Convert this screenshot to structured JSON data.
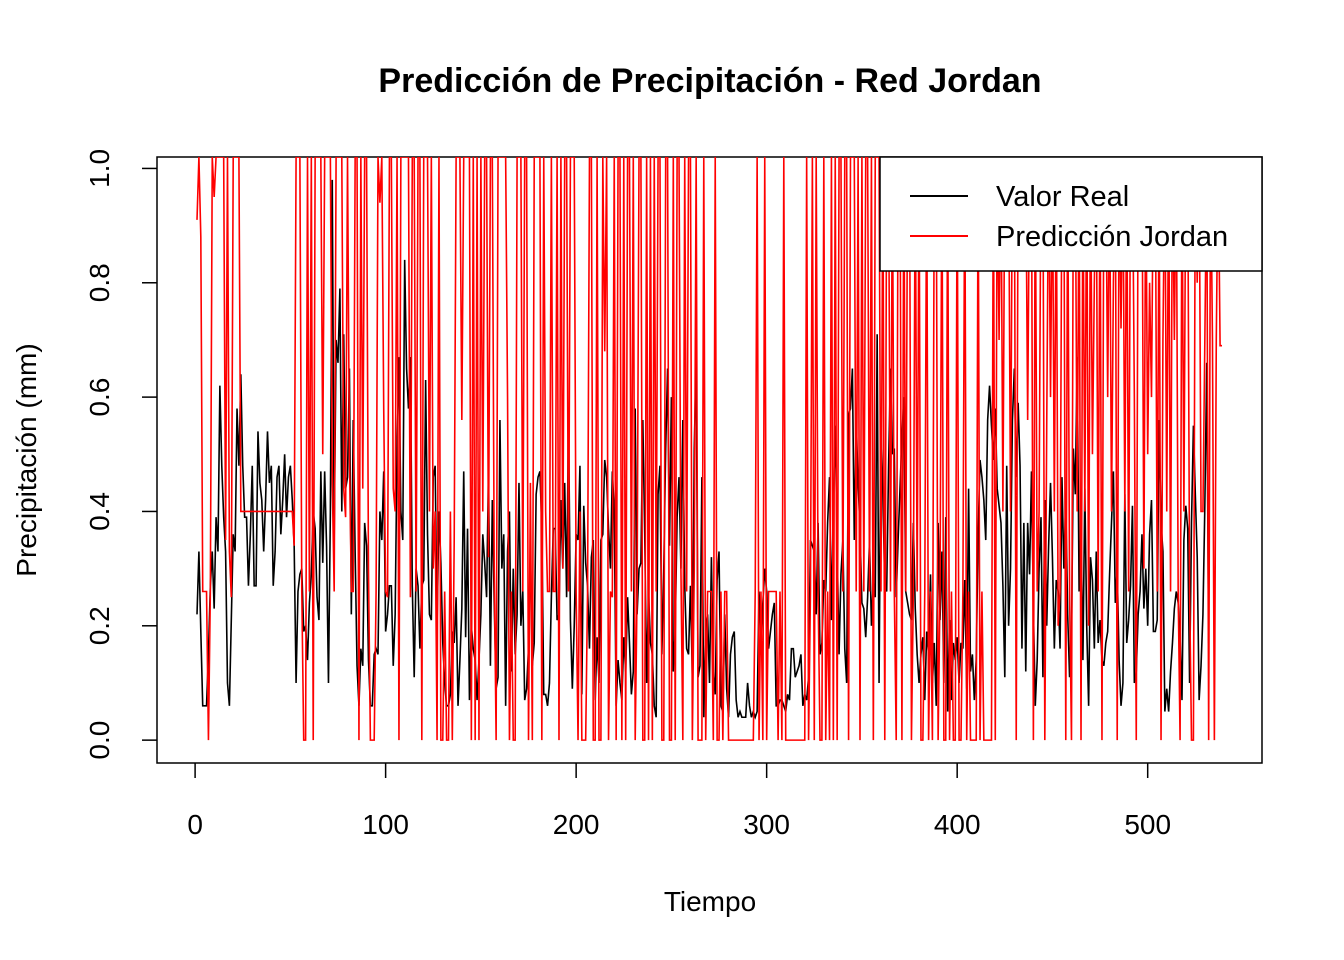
{
  "chart_data": {
    "type": "line",
    "title": "Predicción de Precipitación - Red Jordan",
    "xlabel": "Tiempo",
    "ylabel": "Precipitación (mm)",
    "xlim": [
      -20,
      560
    ],
    "ylim": [
      -0.04,
      1.02
    ],
    "x_ticks": [
      0,
      100,
      200,
      300,
      400,
      500
    ],
    "y_ticks": [
      0.0,
      0.2,
      0.4,
      0.6,
      0.8,
      1.0
    ],
    "x_tick_labels": [
      "0",
      "100",
      "200",
      "300",
      "400",
      "500"
    ],
    "y_tick_labels": [
      "0.0",
      "0.2",
      "0.4",
      "0.6",
      "0.8",
      "1.0"
    ],
    "legend": {
      "position": "top-right",
      "entries": [
        "Valor Real",
        "Predicción Jordan"
      ]
    },
    "series": [
      {
        "name": "Valor Real",
        "color": "#000000",
        "x_start": 1,
        "x_step": 1,
        "values": [
          0.22,
          0.33,
          0.19,
          0.06,
          0.06,
          0.06,
          0.15,
          0.27,
          0.33,
          0.23,
          0.39,
          0.33,
          0.62,
          0.48,
          0.39,
          0.33,
          0.1,
          0.06,
          0.21,
          0.36,
          0.33,
          0.58,
          0.48,
          0.64,
          0.48,
          0.39,
          0.39,
          0.27,
          0.36,
          0.48,
          0.27,
          0.27,
          0.54,
          0.45,
          0.42,
          0.33,
          0.42,
          0.54,
          0.45,
          0.48,
          0.27,
          0.33,
          0.46,
          0.48,
          0.36,
          0.42,
          0.5,
          0.39,
          0.46,
          0.48,
          0.42,
          0.34,
          0.1,
          0.26,
          0.29,
          0.3,
          0.19,
          0.2,
          0.14,
          0.24,
          0.29,
          0.4,
          0.37,
          0.25,
          0.21,
          0.47,
          0.31,
          0.47,
          0.34,
          0.1,
          0.4,
          0.98,
          0.35,
          0.7,
          0.66,
          0.79,
          0.4,
          0.71,
          0.44,
          0.46,
          0.65,
          0.22,
          0.56,
          0.33,
          0.13,
          0.06,
          0.16,
          0.13,
          0.38,
          0.34,
          0.14,
          0.06,
          0.06,
          0.15,
          0.16,
          0.15,
          0.4,
          0.35,
          0.47,
          0.19,
          0.22,
          0.27,
          0.27,
          0.13,
          0.22,
          0.51,
          0.67,
          0.4,
          0.35,
          0.84,
          0.65,
          0.58,
          0.67,
          0.27,
          0.11,
          0.3,
          0.27,
          0.16,
          0.27,
          0.28,
          0.63,
          0.36,
          0.22,
          0.21,
          0.46,
          0.48,
          0.2,
          0.4,
          0.31,
          0.17,
          0.1,
          0.06,
          0.06,
          0.08,
          0.19,
          0.17,
          0.25,
          0.06,
          0.14,
          0.23,
          0.47,
          0.18,
          0.37,
          0.07,
          0.2,
          0.16,
          0.14,
          0.07,
          0.14,
          0.22,
          0.36,
          0.31,
          0.25,
          0.47,
          0.13,
          0.42,
          0.24,
          0.09,
          0.11,
          0.56,
          0.3,
          0.36,
          0.06,
          0.33,
          0.4,
          0.12,
          0.3,
          0.15,
          0.22,
          0.45,
          0.2,
          0.26,
          0.07,
          0.09,
          0.16,
          0.33,
          0.13,
          0.17,
          0.43,
          0.46,
          0.47,
          0.37,
          0.08,
          0.08,
          0.06,
          0.1,
          0.25,
          0.37,
          0.37,
          0.21,
          0.22,
          0.42,
          0.3,
          0.45,
          0.25,
          0.57,
          0.21,
          0.09,
          0.2,
          0.36,
          0.35,
          0.48,
          0.08,
          0.41,
          0.31,
          0.27,
          0.16,
          0.32,
          0.35,
          0.07,
          0.18,
          0.1,
          0.35,
          0.36,
          0.49,
          0.46,
          0.37,
          0.3,
          0.47,
          0.4,
          0.06,
          0.14,
          0.1,
          0.07,
          0.18,
          0.12,
          0.25,
          0.17,
          0.08,
          0.12,
          0.58,
          0.22,
          0.3,
          0.31,
          0.56,
          0.36,
          0.1,
          0.26,
          0.17,
          0.15,
          0.06,
          0.04,
          0.43,
          0.48,
          0.15,
          0.3,
          0.51,
          0.65,
          0.34,
          0.6,
          0.12,
          0.19,
          0.39,
          0.46,
          0.3,
          0.56,
          0.27,
          0.16,
          0.15,
          0.27,
          0.11,
          0.51,
          0.67,
          0.11,
          0.13,
          0.46,
          0.04,
          0.2,
          0.22,
          0.1,
          0.32,
          0.12,
          0.08,
          0.28,
          0.33,
          0.06,
          0.05,
          0.22,
          0.09,
          0.04,
          0.15,
          0.18,
          0.19,
          0.07,
          0.04,
          0.05,
          0.04,
          0.04,
          0.04,
          0.1,
          0.06,
          0.04,
          0.05,
          0.04,
          0.05,
          0.26,
          0.18,
          0.24,
          0.3,
          0.26,
          0.16,
          0.19,
          0.22,
          0.24,
          0.06,
          0.06,
          0.07,
          0.07,
          0.06,
          0.05,
          0.08,
          0.07,
          0.16,
          0.16,
          0.11,
          0.12,
          0.13,
          0.15,
          0.06,
          0.08,
          0.07,
          0.11,
          0.35,
          0.34,
          0.33,
          0.22,
          0.38,
          0.15,
          0.17,
          0.28,
          0.26,
          0.38,
          0.46,
          0.21,
          0.41,
          0.55,
          0.34,
          0.15,
          0.29,
          0.35,
          0.16,
          0.1,
          0.57,
          0.58,
          0.65,
          0.35,
          0.56,
          0.45,
          0.37,
          0.24,
          0.23,
          0.18,
          0.25,
          0.35,
          0.2,
          0.28,
          0.25,
          0.71,
          0.1,
          0.56,
          0.43,
          0.27,
          0.26,
          0.48,
          0.65,
          0.5,
          0.51,
          0.25,
          0.35,
          0.44,
          0.53,
          0.6,
          0.26,
          0.24,
          0.22,
          0.21,
          0.38,
          0.23,
          0.15,
          0.1,
          0.15,
          0.18,
          0.07,
          0.19,
          0.15,
          0.29,
          0.1,
          0.17,
          0.06,
          0.38,
          0.21,
          0.33,
          0.1,
          0.39,
          0.05,
          0.21,
          0.07,
          0.17,
          0.14,
          0.18,
          0.1,
          0.17,
          0.16,
          0.28,
          0.09,
          0.44,
          0.12,
          0.15,
          0.07,
          0.14,
          0.36,
          0.49,
          0.46,
          0.42,
          0.35,
          0.56,
          0.62,
          0.55,
          0.49,
          0.58,
          0.44,
          0.41,
          0.38,
          0.27,
          0.11,
          0.48,
          0.2,
          0.3,
          0.56,
          0.65,
          0.46,
          0.59,
          0.48,
          0.16,
          0.38,
          0.12,
          0.38,
          0.29,
          0.47,
          0.23,
          0.06,
          0.14,
          0.3,
          0.39,
          0.11,
          0.42,
          0.2,
          0.34,
          0.45,
          0.32,
          0.16,
          0.28,
          0.26,
          0.16,
          0.46,
          0.3,
          0.42,
          0.22,
          0.11,
          0.18,
          0.51,
          0.43,
          0.67,
          0.26,
          0.37,
          0.14,
          0.44,
          0.2,
          0.06,
          0.32,
          0.28,
          0.16,
          0.33,
          0.17,
          0.21,
          0.14,
          0.13,
          0.17,
          0.19,
          0.29,
          0.38,
          0.47,
          0.24,
          0.3,
          0.14,
          0.06,
          0.1,
          0.43,
          0.17,
          0.21,
          0.27,
          0.41,
          0.1,
          0.12,
          0.22,
          0.26,
          0.36,
          0.23,
          0.3,
          0.2,
          0.36,
          0.42,
          0.19,
          0.19,
          0.21,
          0.56,
          0.38,
          0.33,
          0.05,
          0.09,
          0.05,
          0.12,
          0.17,
          0.23,
          0.26,
          0.24,
          0.18,
          0.07,
          0.35,
          0.41,
          0.37,
          0.1,
          0.38,
          0.55,
          0.43,
          0.32,
          0.07,
          0.13,
          0.22,
          0.41,
          0.66,
          0.17
        ]
      },
      {
        "name": "Predicción Jordan",
        "color": "#ff0000",
        "x_start": 1,
        "x_step": 1,
        "values": [
          0.91,
          1.02,
          0.88,
          0.26,
          0.26,
          0.26,
          0.0,
          0.26,
          1.02,
          0.95,
          1.02,
          1.02,
          1.02,
          1.02,
          1.02,
          0.35,
          1.02,
          0.33,
          0.25,
          1.02,
          1.02,
          1.02,
          1.02,
          0.4,
          0.4,
          0.4,
          0.4,
          0.4,
          0.4,
          0.4,
          0.4,
          0.4,
          0.4,
          0.4,
          0.4,
          0.4,
          0.4,
          0.4,
          0.4,
          0.4,
          0.4,
          0.4,
          0.4,
          0.4,
          0.4,
          0.4,
          0.4,
          0.4,
          0.4,
          0.4,
          0.4,
          0.34,
          1.02,
          1.02,
          1.02,
          0.26,
          0.0,
          0.0,
          1.02,
          0.26,
          1.02,
          0.0,
          1.02,
          1.02,
          1.02,
          1.02,
          0.5,
          1.02,
          1.02,
          1.02,
          1.02,
          0.45,
          0.26,
          1.02,
          1.02,
          1.02,
          1.02,
          0.44,
          0.39,
          1.02,
          0.5,
          0.26,
          0.26,
          1.02,
          1.02,
          0.0,
          1.02,
          0.44,
          1.02,
          1.02,
          0.3,
          0.0,
          0.0,
          0.0,
          0.26,
          1.02,
          0.94,
          1.02,
          0.58,
          0.26,
          0.25,
          1.02,
          1.02,
          0.44,
          0.4,
          1.02,
          0.0,
          1.02,
          1.02,
          1.02,
          1.02,
          1.02,
          0.25,
          1.02,
          1.02,
          0.26,
          1.02,
          1.02,
          0.0,
          1.02,
          1.02,
          1.02,
          0.4,
          1.02,
          0.3,
          0.4,
          0.0,
          1.02,
          0.0,
          0.0,
          0.26,
          0.0,
          0.0,
          0.4,
          0.0,
          0.35,
          1.02,
          1.02,
          1.02,
          0.56,
          1.02,
          1.02,
          1.02,
          1.02,
          0.0,
          1.02,
          0.0,
          1.02,
          0.0,
          1.02,
          0.4,
          1.02,
          1.02,
          0.32,
          1.02,
          1.02,
          0.3,
          0.0,
          1.02,
          1.02,
          1.02,
          1.02,
          1.02,
          0.6,
          0.0,
          0.26,
          0.0,
          0.0,
          1.02,
          1.02,
          1.02,
          0.26,
          1.02,
          1.02,
          0.0,
          0.45,
          0.0,
          1.02,
          1.02,
          1.02,
          1.02,
          0.0,
          1.02,
          0.4,
          0.26,
          0.26,
          1.02,
          0.26,
          0.26,
          1.02,
          0.0,
          1.02,
          0.3,
          1.02,
          1.02,
          0.26,
          1.02,
          1.02,
          1.02,
          0.26,
          0.0,
          0.4,
          0.0,
          0.0,
          0.0,
          0.26,
          1.02,
          1.02,
          0.0,
          0.0,
          1.02,
          0.0,
          0.0,
          1.02,
          0.68,
          1.02,
          0.0,
          0.26,
          0.25,
          1.02,
          0.0,
          1.02,
          1.02,
          0.0,
          1.02,
          0.0,
          1.02,
          1.02,
          0.26,
          1.02,
          0.0,
          0.26,
          1.02,
          1.02,
          0.0,
          0.0,
          1.02,
          0.0,
          1.02,
          0.0,
          1.02,
          0.26,
          1.02,
          1.02,
          0.0,
          0.0,
          1.02,
          1.02,
          0.0,
          0.0,
          1.02,
          0.0,
          1.02,
          1.02,
          0.3,
          0.0,
          1.02,
          0.26,
          1.02,
          1.02,
          0.0,
          0.3,
          1.02,
          0.0,
          0.0,
          0.0,
          1.02,
          0.0,
          0.26,
          0.26,
          0.26,
          0.0,
          1.02,
          0.0,
          0.0,
          0.26,
          0.0,
          0.26,
          0.26,
          0.0,
          0.0,
          0.0,
          0.0,
          0.0,
          0.0,
          0.0,
          0.0,
          0.0,
          0.0,
          0.0,
          0.0,
          0.0,
          0.0,
          0.26,
          1.02,
          0.0,
          0.26,
          0.0,
          1.02,
          0.0,
          0.26,
          0.26,
          0.26,
          0.26,
          0.26,
          0.0,
          0.26,
          0.0,
          1.02,
          0.0,
          0.0,
          0.0,
          0.0,
          0.0,
          0.0,
          0.0,
          0.0,
          0.0,
          0.0,
          0.0,
          1.02,
          0.0,
          0.26,
          1.02,
          0.0,
          1.02,
          0.26,
          0.0,
          0.0,
          1.02,
          0.0,
          0.26,
          0.0,
          1.02,
          0.0,
          1.02,
          0.0,
          1.02,
          1.02,
          0.26,
          1.02,
          1.02,
          0.0,
          1.02,
          1.02,
          1.02,
          0.26,
          1.02,
          0.0,
          1.02,
          0.26,
          1.02,
          1.02,
          0.26,
          1.02,
          0.0,
          1.02,
          1.02,
          1.02,
          0.26,
          1.02,
          0.0,
          1.02,
          1.02,
          0.26,
          1.02,
          0.26,
          0.0,
          1.02,
          1.02,
          0.0,
          1.02,
          0.26,
          1.02,
          1.02,
          0.0,
          0.26,
          1.02,
          0.26,
          1.02,
          0.0,
          0.0,
          0.26,
          1.02,
          0.0,
          0.26,
          0.0,
          1.02,
          1.02,
          0.0,
          0.26,
          1.02,
          0.0,
          0.0,
          1.02,
          0.0,
          0.26,
          0.0,
          0.0,
          1.02,
          0.0,
          0.0,
          0.26,
          1.02,
          0.0,
          0.26,
          0.0,
          0.0,
          0.0,
          0.0,
          1.02,
          0.0,
          0.26,
          0.0,
          0.0,
          0.0,
          0.0,
          0.0,
          1.02,
          0.0,
          1.02,
          0.7,
          1.02,
          0.4,
          1.02,
          1.02,
          1.02,
          0.4,
          1.02,
          1.02,
          0.0,
          1.02,
          1.02,
          0.9,
          1.02,
          1.02,
          0.56,
          1.02,
          1.02,
          0.0,
          1.02,
          0.26,
          0.4,
          1.02,
          1.02,
          0.0,
          0.55,
          1.02,
          0.6,
          1.02,
          0.4,
          1.02,
          0.2,
          0.26,
          1.02,
          1.02,
          0.0,
          1.02,
          0.26,
          0.0,
          1.02,
          1.02,
          0.4,
          1.02,
          0.0,
          1.02,
          0.4,
          1.02,
          0.2,
          1.02,
          0.5,
          0.8,
          1.02,
          0.26,
          1.02,
          0.0,
          1.02,
          1.02,
          0.6,
          1.02,
          0.4,
          0.8,
          1.02,
          0.0,
          1.02,
          0.72,
          1.02,
          0.4,
          1.02,
          0.26,
          1.02,
          1.02,
          0.6,
          0.0,
          1.02,
          0.85,
          1.02,
          0.3,
          1.02,
          0.5,
          0.8,
          0.6,
          1.02,
          1.02,
          0.26,
          1.02,
          0.0,
          0.7,
          1.02,
          0.4,
          1.02,
          0.26,
          1.02,
          0.7,
          1.02,
          0.26,
          0.0,
          1.02,
          0.4,
          1.02,
          1.02,
          0.26,
          0.0,
          0.0,
          1.02,
          0.8,
          1.02,
          0.4,
          0.4,
          0.7,
          1.02,
          0.0,
          1.02,
          0.7,
          0.0,
          0.7,
          1.02,
          0.69,
          0.69
        ]
      }
    ]
  }
}
